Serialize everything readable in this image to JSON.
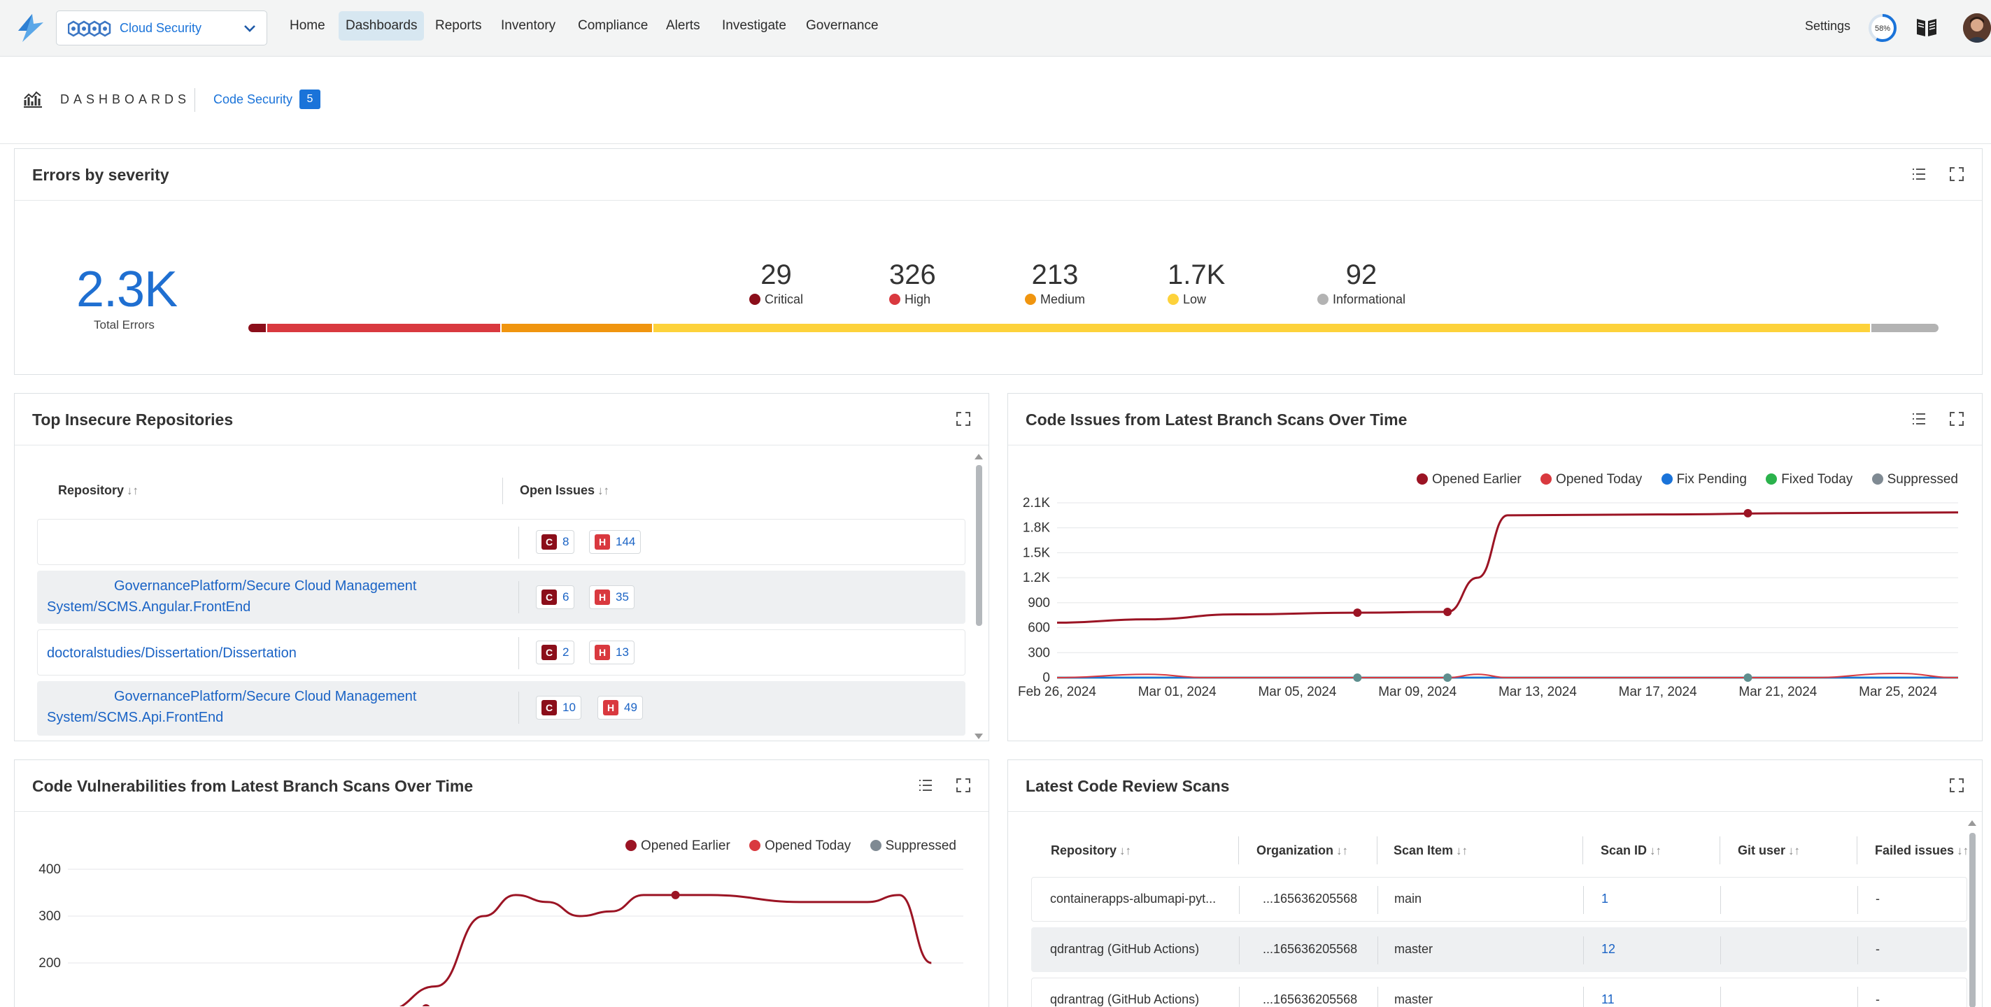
{
  "nav": {
    "switcher_label": "Cloud Security",
    "links": [
      "Home",
      "Dashboards",
      "Reports",
      "Inventory",
      "Compliance",
      "Alerts",
      "Investigate",
      "Governance"
    ],
    "settings": "Settings",
    "progress": "58%",
    "progress_value": 58
  },
  "breadcrumb": {
    "title": "DASHBOARDS",
    "dashboard": "Code Security",
    "count": "5"
  },
  "severity": {
    "title": "Errors by severity",
    "total": "2.3K",
    "total_label": "Total Errors",
    "levels": [
      {
        "value": "29",
        "label": "Critical",
        "color": "#8b0e1a"
      },
      {
        "value": "326",
        "label": "High",
        "color": "#d9393f"
      },
      {
        "value": "213",
        "label": "Medium",
        "color": "#f0950f"
      },
      {
        "value": "1.7K",
        "label": "Low",
        "color": "#fdd23b"
      },
      {
        "value": "92",
        "label": "Informational",
        "color": "#b3b3b3"
      }
    ]
  },
  "repos": {
    "title": "Top Insecure Repositories",
    "col_repo": "Repository",
    "col_issues": "Open Issues",
    "rows": [
      {
        "name_line1": "",
        "name_line2": "",
        "c": "8",
        "h": "144"
      },
      {
        "name_line1": "GovernancePlatform/Secure Cloud Management",
        "name_line2": "System/SCMS.Angular.FrontEnd",
        "c": "6",
        "h": "35"
      },
      {
        "name_line1": "doctoralstudies/Dissertation/Dissertation",
        "name_line2": "",
        "c": "2",
        "h": "13"
      },
      {
        "name_line1": "GovernancePlatform/Secure Cloud Management",
        "name_line2": "System/SCMS.Api.FrontEnd",
        "c": "10",
        "h": "49"
      }
    ]
  },
  "issues_chart": {
    "title": "Code Issues from Latest Branch Scans Over Time",
    "legend": [
      {
        "name": "Opened Earlier",
        "color": "#9b1424"
      },
      {
        "name": "Opened Today",
        "color": "#d9393f"
      },
      {
        "name": "Fix Pending",
        "color": "#1a73d9"
      },
      {
        "name": "Fixed Today",
        "color": "#2bb24c"
      },
      {
        "name": "Suppressed",
        "color": "#7f8a93"
      }
    ],
    "y_ticks": [
      "2.1K",
      "1.8K",
      "1.5K",
      "1.2K",
      "900",
      "600",
      "300",
      "0"
    ],
    "x_ticks": [
      "Feb 26, 2024",
      "Mar 01, 2024",
      "Mar 05, 2024",
      "Mar 09, 2024",
      "Mar 13, 2024",
      "Mar 17, 2024",
      "Mar 21, 2024",
      "Mar 25, 2024"
    ]
  },
  "vuln_chart": {
    "title": "Code Vulnerabilities from Latest Branch Scans Over Time",
    "legend": [
      {
        "name": "Opened Earlier",
        "color": "#9b1424"
      },
      {
        "name": "Opened Today",
        "color": "#d9393f"
      },
      {
        "name": "Suppressed",
        "color": "#7f8a93"
      }
    ],
    "y_ticks": [
      "400",
      "300",
      "200"
    ]
  },
  "chart_data": [
    {
      "type": "line",
      "title": "Code Issues from Latest Branch Scans Over Time",
      "x_start": "Feb 26, 2024",
      "x_end": "Mar 27, 2024",
      "ylim": [
        0,
        2100
      ],
      "series": [
        {
          "name": "Opened Earlier",
          "points": [
            [
              0,
              660
            ],
            [
              3,
              700
            ],
            [
              6,
              760
            ],
            [
              10,
              780
            ],
            [
              13,
              790
            ],
            [
              14,
              1200
            ],
            [
              15,
              1950
            ],
            [
              20,
              1960
            ],
            [
              25,
              1975
            ],
            [
              30,
              1985
            ]
          ]
        },
        {
          "name": "Opened Today",
          "points": [
            [
              0,
              0
            ],
            [
              3,
              40
            ],
            [
              5,
              0
            ],
            [
              13,
              0
            ],
            [
              14,
              40
            ],
            [
              15,
              0
            ],
            [
              25,
              0
            ],
            [
              28,
              50
            ],
            [
              30,
              0
            ]
          ]
        },
        {
          "name": "Fix Pending",
          "points": [
            [
              0,
              0
            ],
            [
              30,
              0
            ]
          ]
        },
        {
          "name": "Fixed Today",
          "points": [
            [
              0,
              0
            ],
            [
              30,
              0
            ]
          ]
        },
        {
          "name": "Suppressed",
          "points": [
            [
              0,
              0
            ],
            [
              30,
              0
            ]
          ]
        }
      ]
    },
    {
      "type": "line",
      "title": "Code Vulnerabilities from Latest Branch Scans Over Time",
      "ylim": [
        100,
        400
      ],
      "series": [
        {
          "name": "Opened Earlier",
          "points": [
            [
              0,
              100
            ],
            [
              10,
              100
            ],
            [
              11.5,
              150
            ],
            [
              13,
              300
            ],
            [
              14,
              345
            ],
            [
              15,
              330
            ],
            [
              16,
              300
            ],
            [
              17,
              310
            ],
            [
              18,
              345
            ],
            [
              20,
              345
            ],
            [
              23,
              330
            ],
            [
              25,
              330
            ],
            [
              26,
              345
            ],
            [
              27,
              200
            ]
          ]
        }
      ]
    }
  ],
  "scans": {
    "title": "Latest Code Review Scans",
    "columns": [
      "Repository",
      "Organization",
      "Scan Item",
      "Scan ID",
      "Git user",
      "Failed issues"
    ],
    "rows": [
      {
        "repo": "containerapps-albumapi-pyt...",
        "org": "...165636205568",
        "item": "main",
        "id": "1",
        "user": "",
        "failed": "-"
      },
      {
        "repo": "qdrantrag (GitHub Actions)",
        "org": "...165636205568",
        "item": "master",
        "id": "12",
        "user": "",
        "failed": "-"
      },
      {
        "repo": "qdrantrag (GitHub Actions)",
        "org": "...165636205568",
        "item": "master",
        "id": "11",
        "user": "",
        "failed": "-"
      }
    ]
  }
}
